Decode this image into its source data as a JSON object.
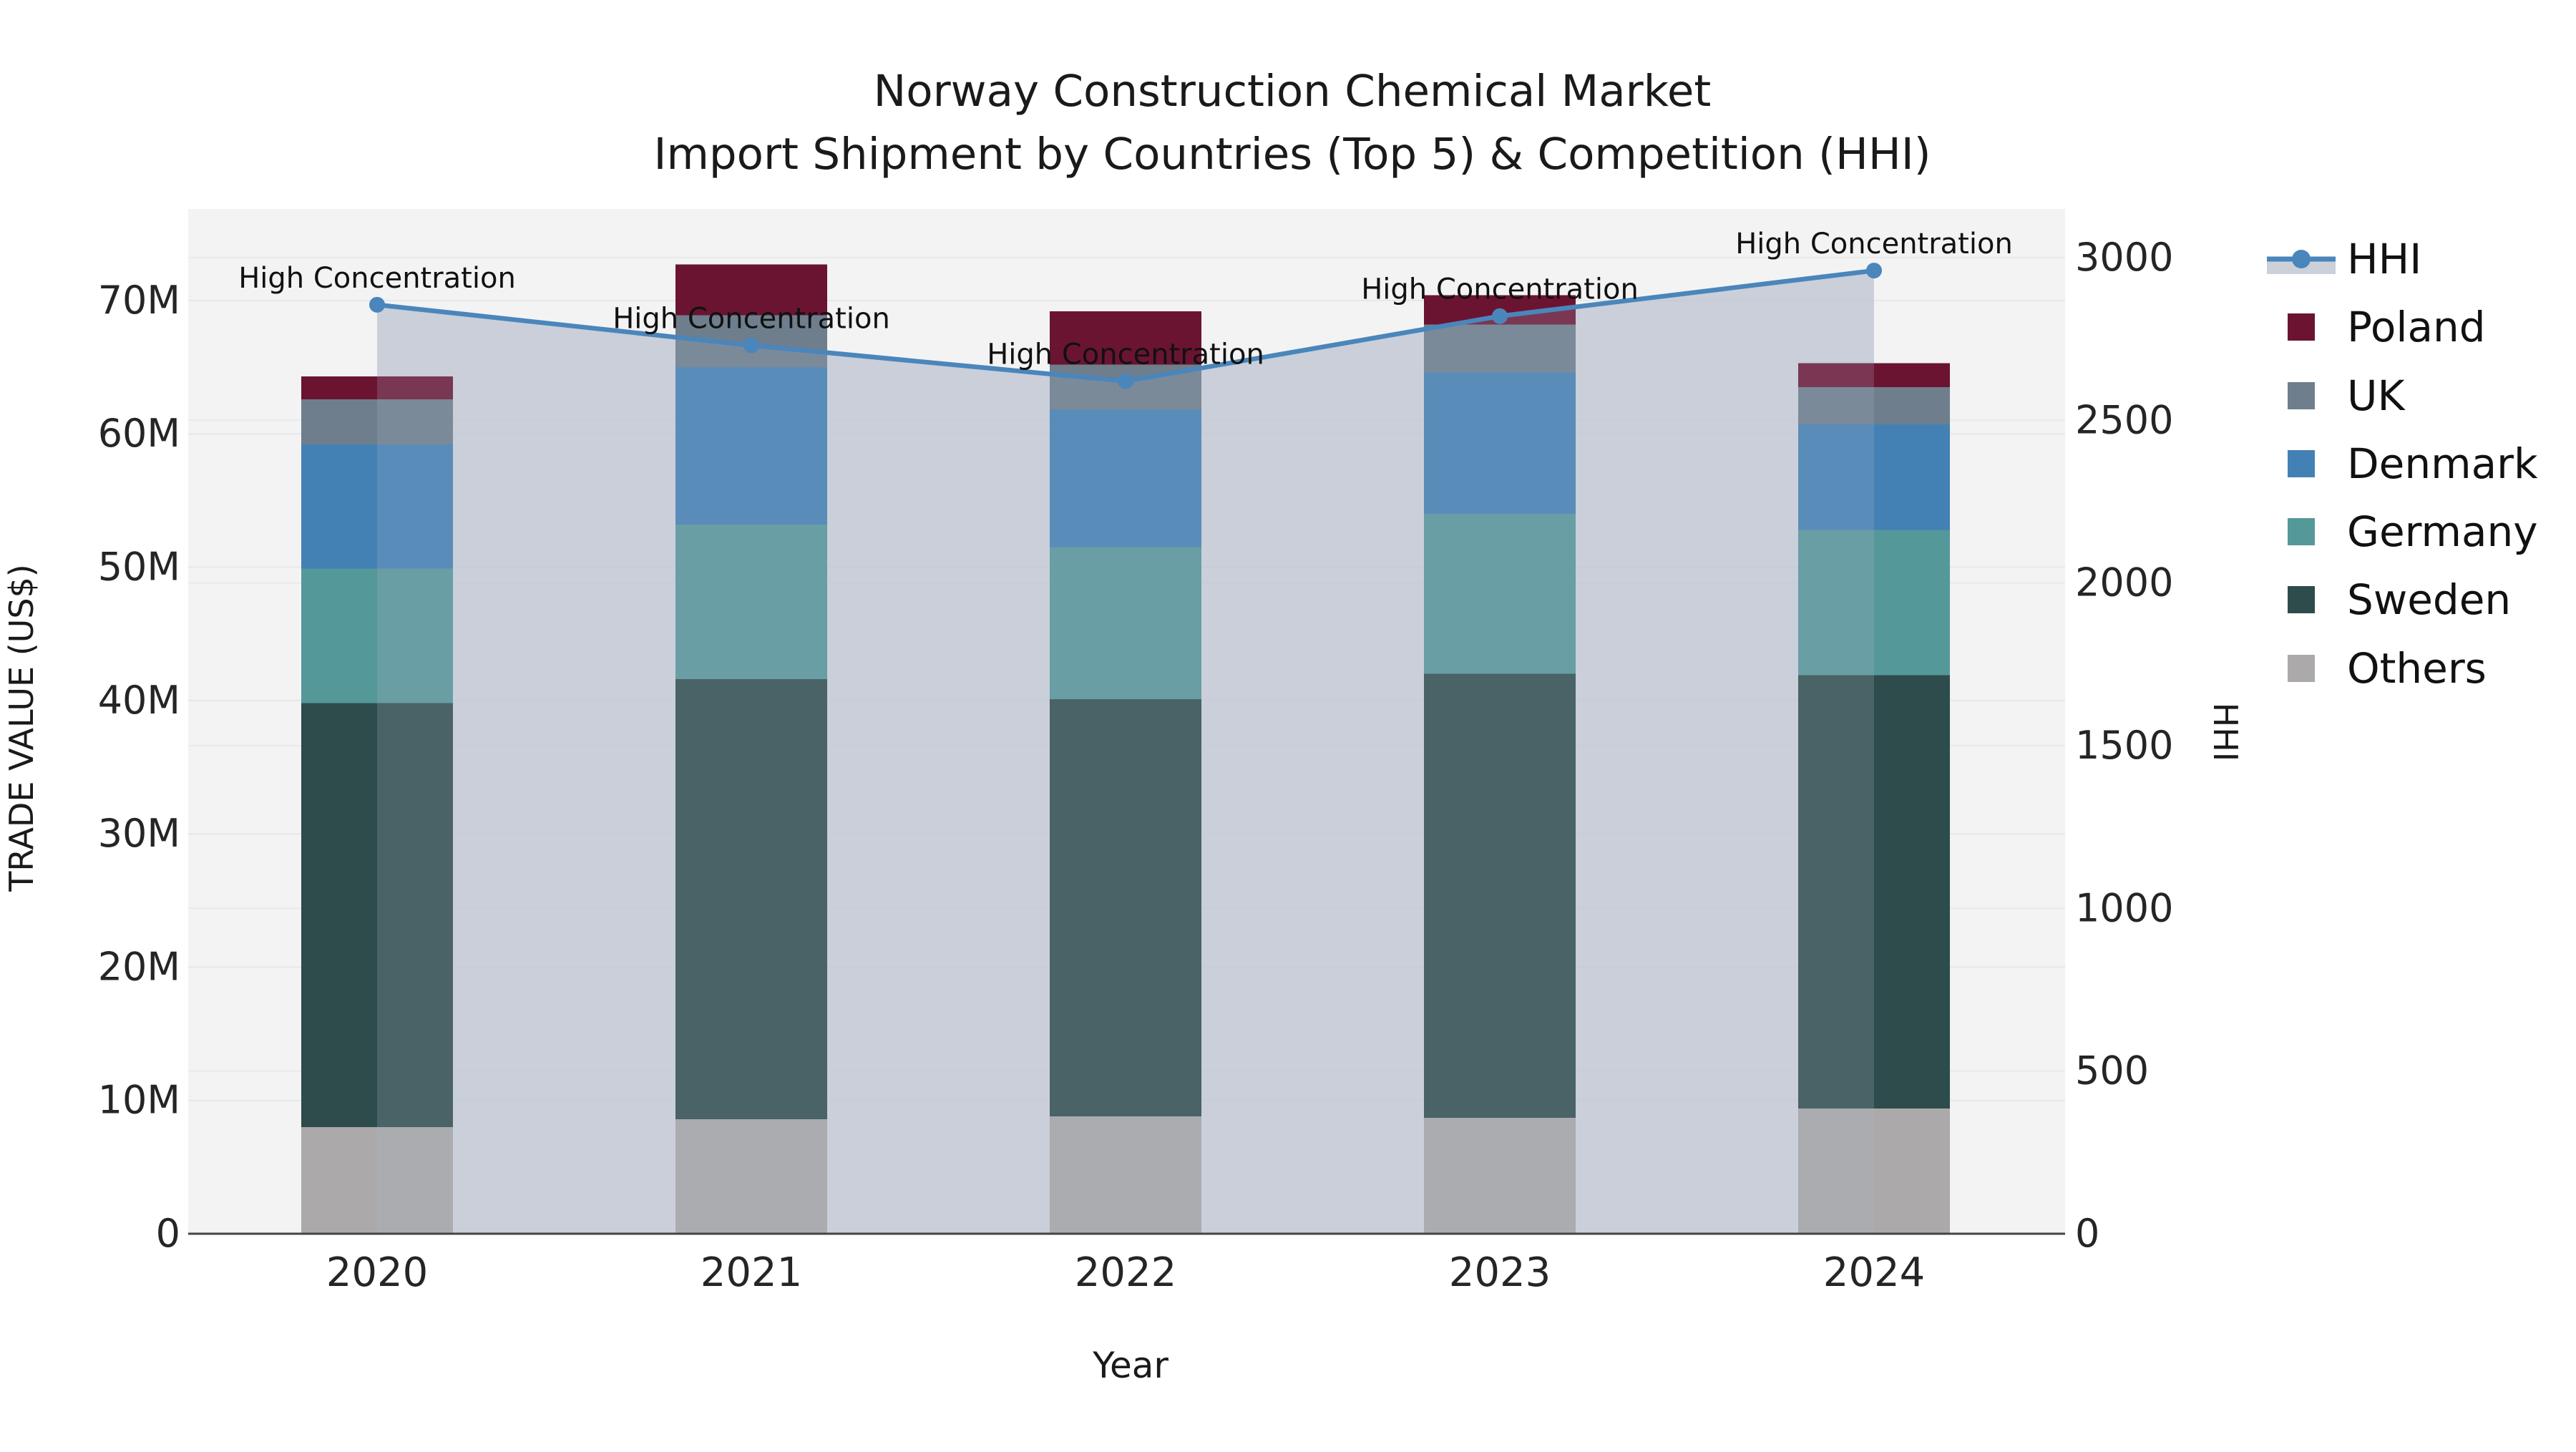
{
  "title": {
    "line1": "Norway Construction Chemical Market",
    "line2": "Import Shipment by Countries (Top 5) & Competition (HHI)"
  },
  "axes": {
    "x": {
      "title": "Year",
      "tick_labels": [
        "2020",
        "2021",
        "2022",
        "2023",
        "2024"
      ]
    },
    "y_left": {
      "title": "TRADE VALUE (US$)",
      "tick_labels": [
        "0",
        "10M",
        "20M",
        "30M",
        "40M",
        "50M",
        "60M",
        "70M"
      ],
      "tick_values": [
        0,
        10,
        20,
        30,
        40,
        50,
        60,
        70
      ]
    },
    "y_right": {
      "title": "HHI",
      "tick_labels": [
        "0",
        "500",
        "1000",
        "1500",
        "2000",
        "2500",
        "3000"
      ],
      "tick_values": [
        0,
        500,
        1000,
        1500,
        2000,
        2500,
        3000
      ]
    }
  },
  "legend": {
    "items": [
      {
        "label": "HHI",
        "kind": "line",
        "color_key": "hhi"
      },
      {
        "label": "Poland",
        "kind": "swatch",
        "color_key": "poland"
      },
      {
        "label": "UK",
        "kind": "swatch",
        "color_key": "uk"
      },
      {
        "label": "Denmark",
        "kind": "swatch",
        "color_key": "denmark"
      },
      {
        "label": "Germany",
        "kind": "swatch",
        "color_key": "germany"
      },
      {
        "label": "Sweden",
        "kind": "swatch",
        "color_key": "sweden"
      },
      {
        "label": "Others",
        "kind": "swatch",
        "color_key": "others"
      }
    ]
  },
  "annotation_text": "High Concentration",
  "chart_data": [
    {
      "type": "bar",
      "stacked": true,
      "categories": [
        "2020",
        "2021",
        "2022",
        "2023",
        "2024"
      ],
      "series": [
        {
          "name": "Others",
          "color_key": "others",
          "values": [
            8.0,
            8.6,
            8.8,
            8.7,
            9.4
          ]
        },
        {
          "name": "Sweden",
          "color_key": "sweden",
          "values": [
            31.8,
            33.0,
            31.3,
            33.3,
            32.5
          ]
        },
        {
          "name": "Germany",
          "color_key": "germany",
          "values": [
            10.1,
            11.6,
            11.4,
            12.0,
            10.9
          ]
        },
        {
          "name": "Denmark",
          "color_key": "denmark",
          "values": [
            9.3,
            11.8,
            10.3,
            10.6,
            7.9
          ]
        },
        {
          "name": "UK",
          "color_key": "uk",
          "values": [
            3.4,
            3.9,
            3.4,
            3.6,
            2.8
          ]
        },
        {
          "name": "Poland",
          "color_key": "poland",
          "values": [
            1.7,
            3.8,
            4.0,
            2.2,
            1.8
          ]
        }
      ],
      "totals": [
        64.3,
        72.7,
        69.2,
        70.4,
        65.3
      ],
      "unit": "M US$",
      "xlabel": "Year",
      "ylabel": "TRADE VALUE (US$)",
      "ylim": [
        0,
        76.9
      ],
      "grid": true,
      "legend_position": "right"
    },
    {
      "type": "line",
      "name": "HHI",
      "x": [
        "2020",
        "2021",
        "2022",
        "2023",
        "2024"
      ],
      "values": [
        2855,
        2730,
        2620,
        2820,
        2960
      ],
      "axis": "right",
      "ylabel": "HHI",
      "ylim": [
        0,
        3150
      ],
      "area_fill": true,
      "markers": "circle",
      "annotations": [
        {
          "x": "2020",
          "text": "High Concentration"
        },
        {
          "x": "2021",
          "text": "High Concentration"
        },
        {
          "x": "2022",
          "text": "High Concentration"
        },
        {
          "x": "2023",
          "text": "High Concentration"
        },
        {
          "x": "2024",
          "text": "High Concentration"
        }
      ]
    }
  ],
  "colors": {
    "poland": "#6B1432",
    "uk": "#6E7E8C",
    "denmark": "#4381B5",
    "germany": "#55989A",
    "sweden": "#2E4C4B",
    "others": "#ABA9A9",
    "hhi": "#4A86BB",
    "hhi_area": "#CBD0D9",
    "plot_background": "#F3F3F4",
    "gridline": "#E5E7EA",
    "axis_line": "#444444",
    "text": "#1A1A1A"
  }
}
